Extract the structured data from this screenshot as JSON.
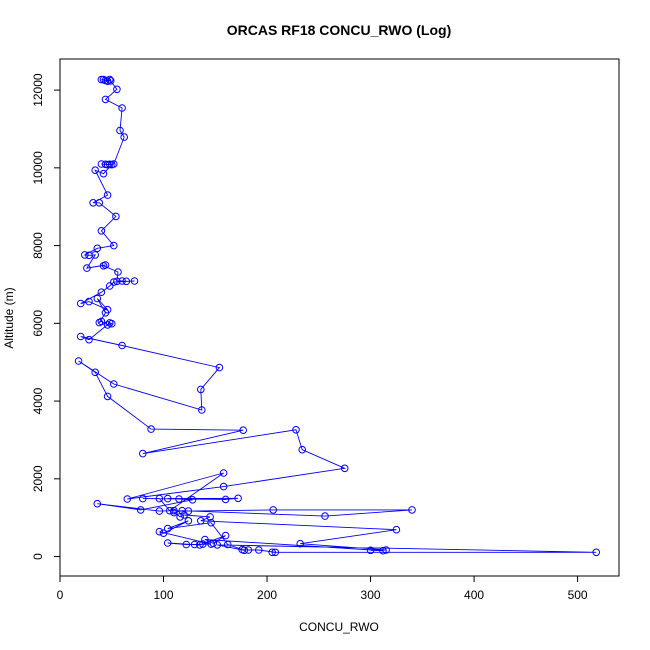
{
  "chart_data": {
    "type": "line",
    "title": "ORCAS RF18 CONCU_RWO (Log)",
    "xlabel": "CONCU_RWO",
    "ylabel": "Altitude (m)",
    "xlim": [
      0,
      540
    ],
    "ylim": [
      -500,
      12800
    ],
    "xticks": [
      0,
      100,
      200,
      300,
      400,
      500
    ],
    "yticks": [
      0,
      2000,
      4000,
      6000,
      8000,
      10000,
      12000
    ],
    "grid": false,
    "legend": "none",
    "series_color": "#0000ff",
    "markers": "open-circle",
    "points": [
      [
        42,
        12270
      ],
      [
        44,
        12250
      ],
      [
        49,
        12240
      ],
      [
        40,
        12270
      ],
      [
        46,
        12230
      ],
      [
        48,
        12270
      ],
      [
        55,
        12020
      ],
      [
        44,
        11760
      ],
      [
        60,
        11540
      ],
      [
        58,
        10960
      ],
      [
        62,
        10790
      ],
      [
        52,
        10100
      ],
      [
        48,
        10090
      ],
      [
        46,
        10080
      ],
      [
        44,
        10090
      ],
      [
        40,
        10100
      ],
      [
        50,
        10080
      ],
      [
        42,
        9850
      ],
      [
        34,
        9940
      ],
      [
        46,
        9300
      ],
      [
        32,
        9100
      ],
      [
        38,
        9100
      ],
      [
        54,
        8750
      ],
      [
        40,
        8380
      ],
      [
        52,
        8000
      ],
      [
        36,
        7930
      ],
      [
        24,
        7760
      ],
      [
        28,
        7750
      ],
      [
        34,
        7760
      ],
      [
        26,
        7420
      ],
      [
        44,
        7500
      ],
      [
        42,
        7480
      ],
      [
        56,
        7320
      ],
      [
        55,
        7080
      ],
      [
        60,
        7090
      ],
      [
        64,
        7080
      ],
      [
        72,
        7090
      ],
      [
        52,
        7060
      ],
      [
        48,
        6960
      ],
      [
        40,
        6800
      ],
      [
        20,
        6510
      ],
      [
        28,
        6560
      ],
      [
        46,
        6350
      ],
      [
        36,
        6640
      ],
      [
        44,
        6270
      ],
      [
        38,
        6020
      ],
      [
        40,
        6050
      ],
      [
        46,
        5960
      ],
      [
        50,
        5990
      ],
      [
        48,
        6010
      ],
      [
        28,
        5580
      ],
      [
        20,
        5660
      ],
      [
        60,
        5430
      ],
      [
        154,
        4860
      ],
      [
        136,
        4300
      ],
      [
        137,
        3770
      ],
      [
        52,
        4440
      ],
      [
        18,
        5030
      ],
      [
        34,
        4740
      ],
      [
        46,
        4120
      ],
      [
        88,
        3280
      ],
      [
        177,
        3250
      ],
      [
        80,
        2650
      ],
      [
        228,
        3260
      ],
      [
        234,
        2750
      ],
      [
        275,
        2270
      ],
      [
        158,
        1800
      ],
      [
        65,
        1480
      ],
      [
        158,
        2150
      ],
      [
        106,
        1180
      ],
      [
        96,
        1490
      ],
      [
        80,
        1490
      ],
      [
        160,
        1470
      ],
      [
        172,
        1500
      ],
      [
        104,
        1490
      ],
      [
        115,
        1480
      ],
      [
        128,
        1460
      ],
      [
        78,
        1200
      ],
      [
        36,
        1360
      ],
      [
        96,
        1170
      ],
      [
        110,
        1180
      ],
      [
        124,
        1170
      ],
      [
        206,
        1200
      ],
      [
        340,
        1200
      ],
      [
        256,
        1040
      ],
      [
        118,
        1180
      ],
      [
        110,
        1130
      ],
      [
        116,
        1020
      ],
      [
        120,
        1070
      ],
      [
        145,
        1020
      ],
      [
        136,
        920
      ],
      [
        325,
        690
      ],
      [
        232,
        330
      ],
      [
        315,
        170
      ],
      [
        300,
        160
      ],
      [
        312,
        150
      ],
      [
        140,
        440
      ],
      [
        148,
        340
      ],
      [
        160,
        540
      ],
      [
        138,
        320
      ],
      [
        135,
        300
      ],
      [
        104,
        350
      ],
      [
        122,
        310
      ],
      [
        130,
        310
      ],
      [
        146,
        320
      ],
      [
        96,
        640
      ],
      [
        100,
        600
      ],
      [
        124,
        920
      ],
      [
        104,
        720
      ],
      [
        146,
        870
      ],
      [
        162,
        310
      ],
      [
        176,
        180
      ],
      [
        182,
        170
      ],
      [
        192,
        170
      ],
      [
        208,
        110
      ],
      [
        205,
        110
      ],
      [
        518,
        110
      ],
      [
        152,
        300
      ],
      [
        178,
        160
      ]
    ]
  }
}
